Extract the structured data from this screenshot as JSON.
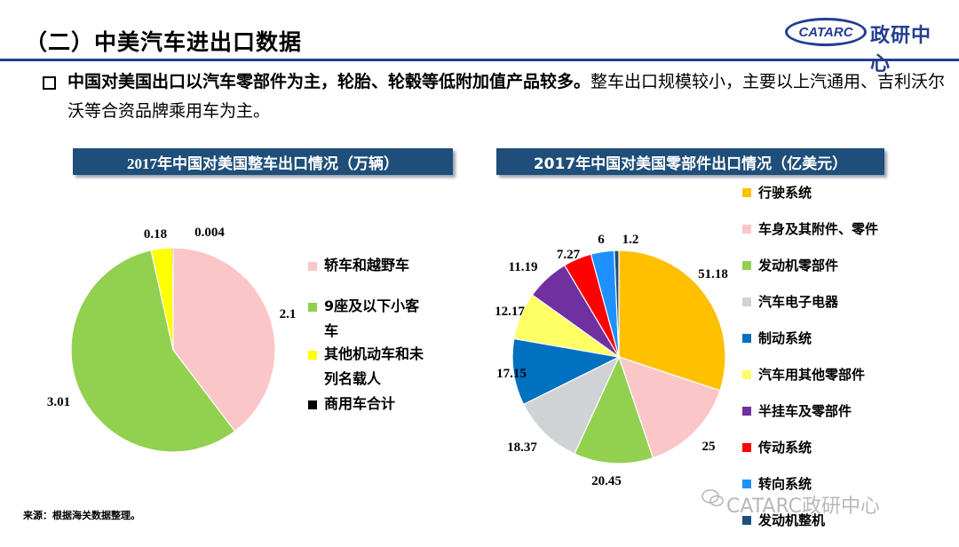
{
  "page": {
    "title": "（二）中美汽车进出口数据",
    "logo_mark": "CATARC",
    "logo_text": "政研中心",
    "bullet_bold": "中国对美国出口以汽车零部件为主，轮胎、轮毂等低附加值产品较多。",
    "bullet_rest": "整车出口规模较小，主要以上汽通用、吉利沃尔沃等合资品牌乘用车为主。",
    "source": "来源：根据海关数据整理。",
    "watermark": "CATARC政研中心",
    "watermark_icon": "wechat-icon"
  },
  "chart_data": [
    {
      "type": "pie",
      "title": "2017年中国对美国整车出口情况（万辆）",
      "labels": [
        "轿车和越野车",
        "9座及以下小客车",
        "其他机动车和未列名载人",
        "商用车合计"
      ],
      "legend_lines": [
        [
          "轿车和越野车"
        ],
        [
          "9座及以下小客",
          "车"
        ],
        [
          "其他机动车和未",
          "列名载人"
        ],
        [
          "商用车合计"
        ]
      ],
      "values": [
        2.1,
        3.01,
        0.18,
        0.004
      ],
      "data_labels": [
        "2.1",
        "3.01",
        "0.18",
        "0.004"
      ],
      "colors": [
        "#fbc6c8",
        "#92d050",
        "#ffff00",
        "#000000"
      ],
      "legend_position": "right"
    },
    {
      "type": "pie",
      "title": "2017年中国对美国零部件出口情况（亿美元）",
      "labels": [
        "行驶系统",
        "车身及其附件、零件",
        "发动机零部件",
        "汽车电子电器",
        "制动系统",
        "汽车用其他零部件",
        "半挂车及零部件",
        "传动系统",
        "转向系统",
        "发动机整机"
      ],
      "values": [
        51.18,
        25,
        20.45,
        18.37,
        17.15,
        12.17,
        11.19,
        7.27,
        6,
        1.2
      ],
      "data_labels": [
        "51.18",
        "25",
        "20.45",
        "18.37",
        "17.15",
        "12.17",
        "11.19",
        "7.27",
        "6",
        "1.2"
      ],
      "colors": [
        "#ffc000",
        "#fbc6c8",
        "#92d050",
        "#d0d3d6",
        "#0070c0",
        "#ffff66",
        "#7030a0",
        "#ff0000",
        "#1e90ff",
        "#1f4e79"
      ],
      "legend_position": "right"
    }
  ]
}
